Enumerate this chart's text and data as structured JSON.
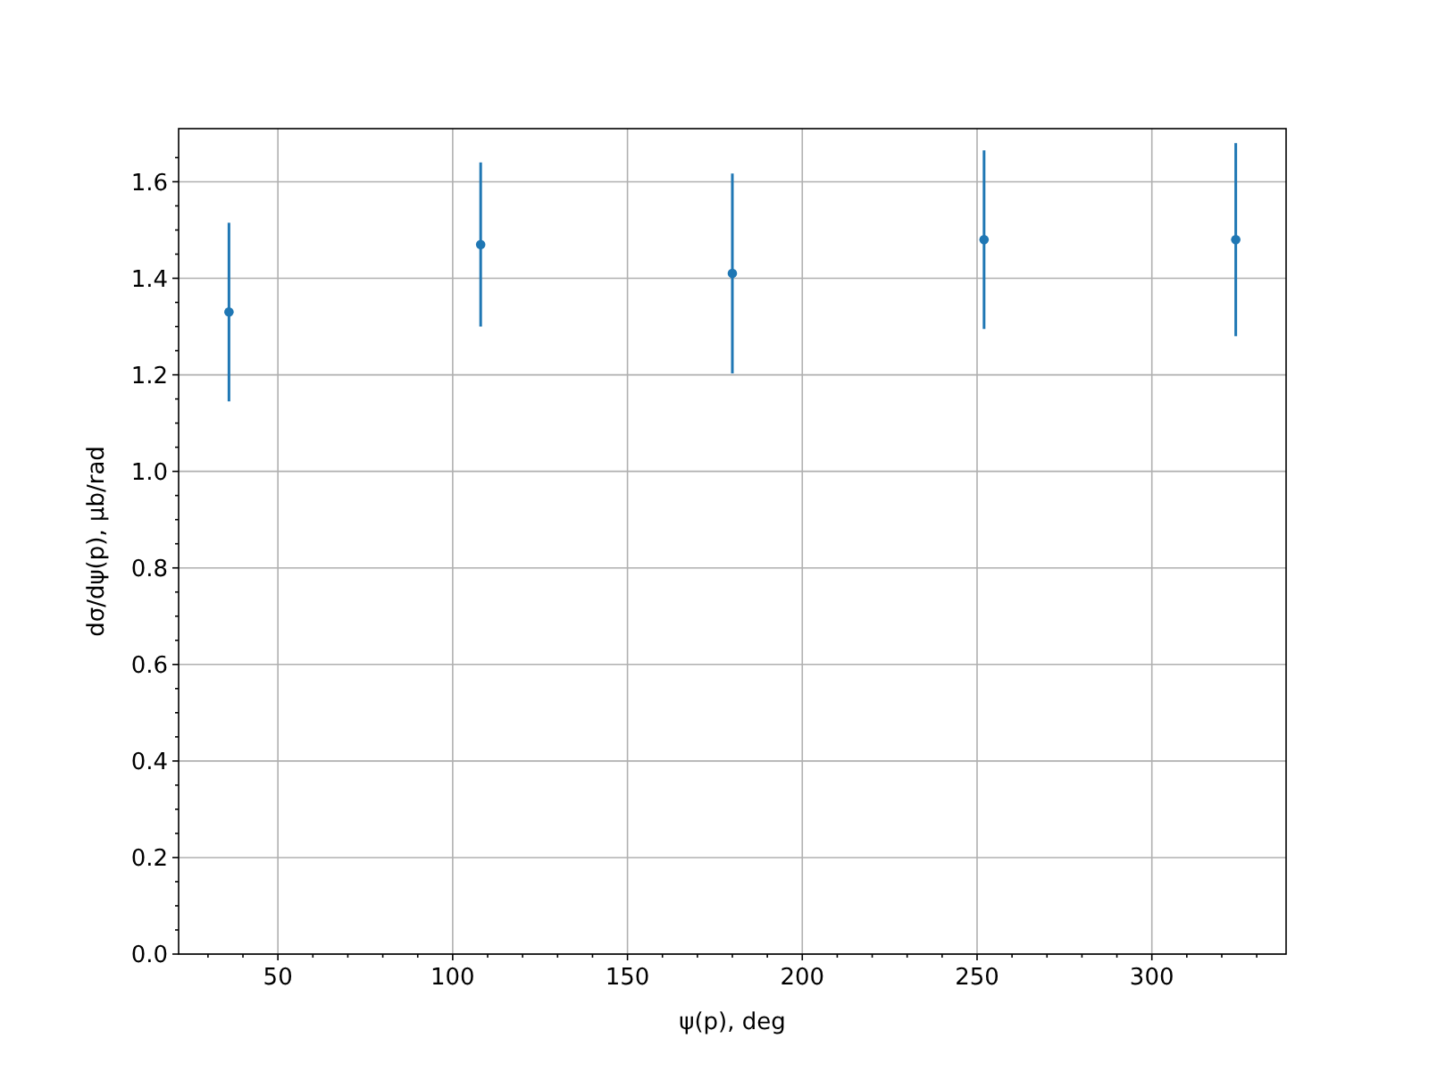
{
  "chart_data": {
    "type": "scatter",
    "xlabel": "ψ(p), deg",
    "ylabel": "dσ/dψ(p), μb/rad",
    "x": [
      36,
      108,
      180,
      252,
      324
    ],
    "series": [
      {
        "color": "#1f77b4",
        "values": [
          1.33,
          1.47,
          1.41,
          1.48,
          1.48
        ],
        "errors": [
          0.185,
          0.17,
          0.207,
          0.185,
          0.2
        ]
      }
    ],
    "xlim": [
      21.6,
      338.4
    ],
    "ylim": [
      0,
      1.71
    ],
    "xticks": [
      {
        "value": 30,
        "label": null
      },
      {
        "value": 40,
        "label": null
      },
      50,
      {
        "value": 60,
        "label": null
      },
      {
        "value": 70,
        "label": null
      },
      {
        "value": 80,
        "label": null
      },
      {
        "value": 90,
        "label": null
      },
      100,
      {
        "value": 110,
        "label": null
      },
      {
        "value": 120,
        "label": null
      },
      {
        "value": 130,
        "label": null
      },
      {
        "value": 140,
        "label": null
      },
      150,
      {
        "value": 160,
        "label": null
      },
      {
        "value": 170,
        "label": null
      },
      {
        "value": 180,
        "label": null
      },
      {
        "value": 190,
        "label": null
      },
      200,
      {
        "value": 210,
        "label": null
      },
      {
        "value": 220,
        "label": null
      },
      {
        "value": 230,
        "label": null
      },
      {
        "value": 240,
        "label": null
      },
      250,
      {
        "value": 260,
        "label": null
      },
      {
        "value": 270,
        "label": null
      },
      {
        "value": 280,
        "label": null
      },
      {
        "value": 290,
        "label": null
      },
      300,
      {
        "value": 310,
        "label": null
      },
      {
        "value": 320,
        "label": null
      },
      {
        "value": 330,
        "label": null
      }
    ],
    "yticks": [
      {
        "value": 0,
        "label": "0.0"
      },
      {
        "value": 0.05,
        "label": null
      },
      {
        "value": 0.1,
        "label": null
      },
      {
        "value": 0.15,
        "label": null
      },
      {
        "value": 0.2,
        "label": "0.2"
      },
      {
        "value": 0.25,
        "label": null
      },
      {
        "value": 0.3,
        "label": null
      },
      {
        "value": 0.35,
        "label": null
      },
      {
        "value": 0.4,
        "label": "0.4"
      },
      {
        "value": 0.45,
        "label": null
      },
      {
        "value": 0.5,
        "label": null
      },
      {
        "value": 0.55,
        "label": null
      },
      {
        "value": 0.6,
        "label": "0.6"
      },
      {
        "value": 0.65,
        "label": null
      },
      {
        "value": 0.7,
        "label": null
      },
      {
        "value": 0.75,
        "label": null
      },
      {
        "value": 0.8,
        "label": "0.8"
      },
      {
        "value": 0.85,
        "label": null
      },
      {
        "value": 0.9,
        "label": null
      },
      {
        "value": 0.95,
        "label": null
      },
      {
        "value": 1.0,
        "label": "1.0"
      },
      {
        "value": 1.05,
        "label": null
      },
      {
        "value": 1.1,
        "label": null
      },
      {
        "value": 1.15,
        "label": null
      },
      {
        "value": 1.2,
        "label": "1.2"
      },
      {
        "value": 1.25,
        "label": null
      },
      {
        "value": 1.3,
        "label": null
      },
      {
        "value": 1.35,
        "label": null
      },
      {
        "value": 1.4,
        "label": "1.4"
      },
      {
        "value": 1.45,
        "label": null
      },
      {
        "value": 1.5,
        "label": null
      },
      {
        "value": 1.55,
        "label": null
      },
      {
        "value": 1.6,
        "label": "1.6"
      },
      {
        "value": 1.65,
        "label": null
      }
    ],
    "grid": true,
    "marker": "circle"
  }
}
